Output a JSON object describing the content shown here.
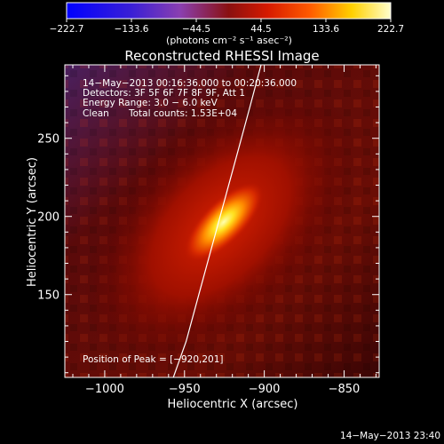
{
  "chart_data": {
    "type": "heatmap",
    "title": "Reconstructed RHESSI Image",
    "xlabel": "Heliocentric X (arcsec)",
    "ylabel": "Heliocentric Y (arcsec)",
    "xlim": [
      -1025,
      -828
    ],
    "ylim": [
      97,
      297
    ],
    "x_ticks": [
      -1000,
      -950,
      -900,
      -850
    ],
    "y_ticks": [
      150,
      200,
      250
    ],
    "colorbar": {
      "min": -222.7,
      "max": 222.7,
      "tick_values": [
        -222.7,
        -133.6,
        -44.5,
        44.5,
        133.6,
        222.7
      ],
      "tick_labels": [
        "−222.7",
        "−133.6",
        "−44.5",
        "44.5",
        "133.6",
        "222.7"
      ],
      "unit_label": "(photons cm⁻² s⁻¹ asec⁻²)"
    },
    "annotations": {
      "time_range": "14−May−2013 00:16:36.000 to 00:20:36.000",
      "detectors": "Detectors: 3F 5F 6F 7F 8F 9F, Att 1",
      "energy_range": "Energy Range: 3.0 − 6.0 keV",
      "method": "Clean",
      "total_counts": "Total counts: 1.53E+04",
      "peak_position": "Position of Peak = [−920,201]"
    },
    "peak": {
      "x": -920,
      "y": 201,
      "value": 222.7
    },
    "limb_line": [
      [
        -957,
        97
      ],
      [
        -949,
        120
      ],
      [
        -941,
        150
      ],
      [
        -933,
        180
      ],
      [
        -925,
        210
      ],
      [
        -917,
        240
      ],
      [
        -909,
        270
      ],
      [
        -902,
        297
      ]
    ]
  },
  "footer": {
    "timestamp": "14−May−2013 23:40"
  }
}
